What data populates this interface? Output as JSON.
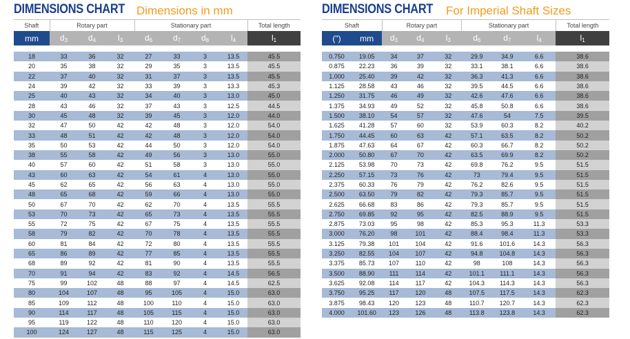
{
  "metric": {
    "title": "DIMENSIONS CHART",
    "subtitle": "Dimensions in mm",
    "groups": {
      "shaft": "Shaft",
      "rotary": "Rotary part",
      "stationary": "Stationary part",
      "total": "Total length"
    },
    "columns": {
      "shaft": "mm",
      "d3": "d3",
      "d4": "d4",
      "l3": "l3",
      "d6": "d6",
      "d7": "d7",
      "d8": "d8",
      "l4": "l4",
      "l1": "l1"
    },
    "rows": [
      [
        "18",
        "33",
        "36",
        "32",
        "27",
        "33",
        "3",
        "13.5",
        "45.5"
      ],
      [
        "20",
        "35",
        "38",
        "32",
        "29",
        "35",
        "3",
        "13.5",
        "45.5"
      ],
      [
        "22",
        "37",
        "40",
        "32",
        "31",
        "37",
        "3",
        "13.5",
        "45.5"
      ],
      [
        "24",
        "39",
        "42",
        "32",
        "33",
        "39",
        "3",
        "13.3",
        "45.3"
      ],
      [
        "25",
        "40",
        "43",
        "32",
        "34",
        "40",
        "3",
        "13.0",
        "45.0"
      ],
      [
        "28",
        "43",
        "46",
        "32",
        "37",
        "43",
        "3",
        "12.5",
        "44.5"
      ],
      [
        "30",
        "45",
        "48",
        "32",
        "39",
        "45",
        "3",
        "12.0",
        "44.0"
      ],
      [
        "32",
        "47",
        "50",
        "42",
        "42",
        "48",
        "3",
        "12.0",
        "54.0"
      ],
      [
        "33",
        "48",
        "51",
        "42",
        "42",
        "48",
        "3",
        "12.0",
        "54.0"
      ],
      [
        "35",
        "50",
        "53",
        "42",
        "44",
        "50",
        "3",
        "12.0",
        "54.0"
      ],
      [
        "38",
        "55",
        "58",
        "42",
        "49",
        "56",
        "3",
        "13.0",
        "55.0"
      ],
      [
        "40",
        "57",
        "60",
        "42",
        "51",
        "58",
        "3",
        "13.0",
        "55.0"
      ],
      [
        "43",
        "60",
        "63",
        "42",
        "54",
        "61",
        "4",
        "13.0",
        "55.0"
      ],
      [
        "45",
        "62",
        "65",
        "42",
        "56",
        "63",
        "4",
        "13.0",
        "55.0"
      ],
      [
        "48",
        "65",
        "68",
        "42",
        "59",
        "66",
        "4",
        "13.0",
        "55.0"
      ],
      [
        "50",
        "67",
        "70",
        "42",
        "62",
        "70",
        "4",
        "13.5",
        "55.5"
      ],
      [
        "53",
        "70",
        "73",
        "42",
        "65",
        "73",
        "4",
        "13.5",
        "55.5"
      ],
      [
        "55",
        "72",
        "75",
        "42",
        "67",
        "75",
        "4",
        "13.5",
        "55.5"
      ],
      [
        "58",
        "79",
        "82",
        "42",
        "70",
        "78",
        "4",
        "13.5",
        "55.5"
      ],
      [
        "60",
        "81",
        "84",
        "42",
        "72",
        "80",
        "4",
        "13.5",
        "55.5"
      ],
      [
        "65",
        "86",
        "89",
        "42",
        "77",
        "85",
        "4",
        "13.5",
        "55.5"
      ],
      [
        "68",
        "89",
        "92",
        "42",
        "81",
        "90",
        "4",
        "13.5",
        "55.5"
      ],
      [
        "70",
        "91",
        "94",
        "42",
        "83",
        "92",
        "4",
        "14.5",
        "56.5"
      ],
      [
        "75",
        "99",
        "102",
        "48",
        "88",
        "97",
        "4",
        "14.5",
        "62.5"
      ],
      [
        "80",
        "104",
        "107",
        "48",
        "95",
        "105",
        "4",
        "15.0",
        "63.0"
      ],
      [
        "85",
        "109",
        "112",
        "48",
        "100",
        "110",
        "4",
        "15.0",
        "63.0"
      ],
      [
        "90",
        "114",
        "117",
        "48",
        "105",
        "115",
        "4",
        "15.0",
        "63.0"
      ],
      [
        "95",
        "119",
        "122",
        "48",
        "110",
        "120",
        "4",
        "15.0",
        "63.0"
      ],
      [
        "100",
        "124",
        "127",
        "48",
        "115",
        "125",
        "4",
        "15.0",
        "63.0"
      ]
    ]
  },
  "imperial": {
    "title": "DIMENSIONS CHART",
    "subtitle": "For Imperial Shaft Sizes",
    "groups": {
      "shaft": "Shaft",
      "rotary": "Rotary part",
      "stationary": "Stationary part",
      "total": "Total length"
    },
    "columns": {
      "inch": "(\")",
      "mm": "mm",
      "d3": "d3",
      "d4": "d4",
      "l3": "l3",
      "d6": "d6",
      "d7": "d7",
      "l4": "l4",
      "l1": "l1"
    },
    "rows": [
      [
        "0.750",
        "19.05",
        "34",
        "37",
        "32",
        "29.9",
        "34.9",
        "6.6",
        "38.6"
      ],
      [
        "0.875",
        "22.23",
        "36",
        "39",
        "32",
        "33.1",
        "38.1",
        "6.6",
        "38.6"
      ],
      [
        "1.000",
        "25.40",
        "39",
        "42",
        "32",
        "36.3",
        "41.3",
        "6.6",
        "38.6"
      ],
      [
        "1.125",
        "28.58",
        "43",
        "46",
        "32",
        "39.5",
        "44.5",
        "6.6",
        "38.6"
      ],
      [
        "1.250",
        "31.75",
        "46",
        "49",
        "32",
        "42.6",
        "47.6",
        "6.6",
        "38.6"
      ],
      [
        "1.375",
        "34.93",
        "49",
        "52",
        "32",
        "45.8",
        "50.8",
        "6.6",
        "38.6"
      ],
      [
        "1.500",
        "38.10",
        "54",
        "57",
        "32",
        "47.6",
        "54",
        "7.5",
        "39.5"
      ],
      [
        "1.625",
        "41.28",
        "57",
        "60",
        "32",
        "53.9",
        "60.3",
        "8.2",
        "40.2"
      ],
      [
        "1.750",
        "44.45",
        "60",
        "63",
        "42",
        "57.1",
        "63.5",
        "8.2",
        "50.2"
      ],
      [
        "1.875",
        "47.63",
        "64",
        "67",
        "42",
        "60.3",
        "66.7",
        "8.2",
        "50.2"
      ],
      [
        "2.000",
        "50.80",
        "67",
        "70",
        "42",
        "63.5",
        "69.9",
        "8.2",
        "50.2"
      ],
      [
        "2.125",
        "53.98",
        "70",
        "73",
        "42",
        "69.8",
        "76.2",
        "9.5",
        "51.5"
      ],
      [
        "2.250",
        "57.15",
        "73",
        "76",
        "42",
        "73",
        "79.4",
        "9.5",
        "51.5"
      ],
      [
        "2.375",
        "60.33",
        "76",
        "79",
        "42",
        "76.2",
        "82.6",
        "9.5",
        "51.5"
      ],
      [
        "2.500",
        "63.50",
        "79",
        "82",
        "42",
        "79.3",
        "85.7",
        "9.5",
        "51.5"
      ],
      [
        "2.625",
        "66.68",
        "83",
        "86",
        "42",
        "79.3",
        "85.7",
        "9.5",
        "51.5"
      ],
      [
        "2.750",
        "69.85",
        "92",
        "95",
        "42",
        "82.5",
        "88.9",
        "9.5",
        "51.5"
      ],
      [
        "2.875",
        "73.03",
        "95",
        "98",
        "42",
        "85.3",
        "95.3",
        "11.3",
        "53.3"
      ],
      [
        "3.000",
        "76.20",
        "98",
        "101",
        "42",
        "88.4",
        "98.4",
        "11.3",
        "53.3"
      ],
      [
        "3.125",
        "79.38",
        "101",
        "104",
        "42",
        "91.6",
        "101.6",
        "14.3",
        "56.3"
      ],
      [
        "3.250",
        "82.55",
        "104",
        "107",
        "42",
        "94.8",
        "104.8",
        "14.3",
        "56.3"
      ],
      [
        "3.375",
        "85.73",
        "107",
        "110",
        "42",
        "98",
        "108",
        "14.3",
        "56.3"
      ],
      [
        "3.500",
        "88.90",
        "111",
        "114",
        "42",
        "101.1",
        "111.1",
        "14.3",
        "56.3"
      ],
      [
        "3.625",
        "92.08",
        "114",
        "117",
        "42",
        "104.3",
        "114.3",
        "14.3",
        "56.3"
      ],
      [
        "3.750",
        "95.25",
        "117",
        "120",
        "48",
        "107.5",
        "117.5",
        "14.3",
        "62.3"
      ],
      [
        "3.875",
        "98.43",
        "120",
        "123",
        "48",
        "110.7",
        "120.7",
        "14.3",
        "62.3"
      ],
      [
        "4.000",
        "101.60",
        "123",
        "126",
        "48",
        "113.8",
        "123.8",
        "14.3",
        "62.3"
      ]
    ]
  },
  "colors": {
    "title": "#1b3f8c",
    "subtitle": "#f39a1b",
    "header_blue": "#1f4b8c",
    "header_gray": "#b4b4b4",
    "header_dark": "#404040",
    "row_highlight": "#a7bad6"
  }
}
